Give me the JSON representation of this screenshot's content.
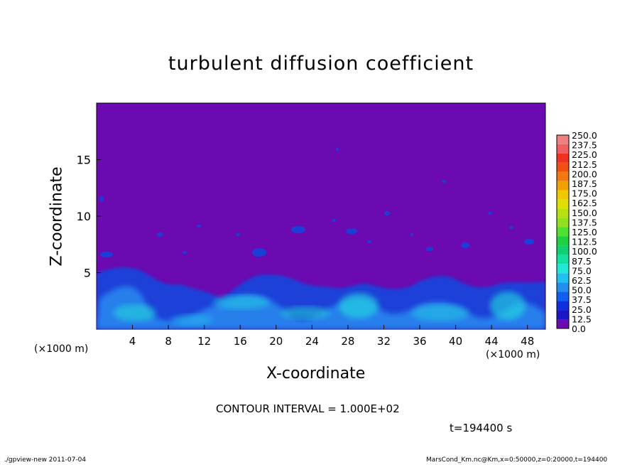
{
  "chart_data": {
    "type": "heatmap",
    "title": "turbulent diffusion coefficient",
    "xlabel": "X-coordinate",
    "ylabel": "Z-coordinate",
    "x_unit_left": "(×1000 m)",
    "x_unit_right": "(×1000 m)",
    "xlim": [
      0,
      50
    ],
    "ylim": [
      0,
      20
    ],
    "x_ticks": [
      "4",
      "8",
      "12",
      "16",
      "20",
      "24",
      "28",
      "32",
      "36",
      "40",
      "44",
      "48"
    ],
    "y_ticks": [
      "5",
      "10",
      "15"
    ],
    "colorbar_labels": [
      "250.0",
      "237.5",
      "225.0",
      "212.5",
      "200.0",
      "187.5",
      "175.0",
      "162.5",
      "150.0",
      "137.5",
      "125.0",
      "112.5",
      "100.0",
      "87.5",
      "75.0",
      "62.5",
      "50.0",
      "37.5",
      "25.0",
      "12.5",
      "0.0"
    ],
    "colorbar_colors": [
      "#f08080",
      "#f06060",
      "#f03020",
      "#f05010",
      "#f07a10",
      "#f0a000",
      "#f0c800",
      "#e0e000",
      "#b8e010",
      "#90e020",
      "#50e030",
      "#20d040",
      "#10d070",
      "#10e0a0",
      "#20e8d8",
      "#20c0f0",
      "#2090f0",
      "#1060f0",
      "#1030e0",
      "#1818c8",
      "#6a0ab0"
    ],
    "background_color": "#6a0ab0",
    "contour_interval": "CONTOUR INTERVAL = 1.000E+02",
    "time_label": "t=194400 s"
  },
  "footer": {
    "left": "./gpview-new  2011-07-04",
    "right": "MarsCond_Km.nc@Km,x=0:50000,z=0:20000,t=194400"
  }
}
